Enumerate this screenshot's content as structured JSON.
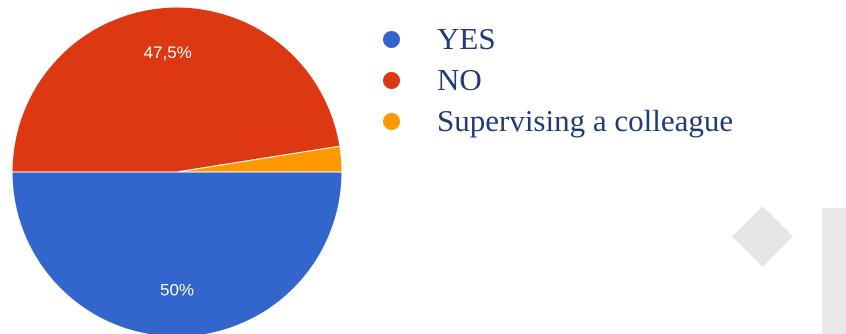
{
  "chart_data": {
    "type": "pie",
    "slices": [
      {
        "label": "YES",
        "value": 50,
        "display": "50%",
        "color": "#3366cc"
      },
      {
        "label": "NO",
        "value": 47.5,
        "display": "47,5%",
        "color": "#dc3912"
      },
      {
        "label": "Supervising a colleague",
        "value": 2.5,
        "display": "",
        "color": "#ff9900"
      }
    ]
  },
  "legend": {
    "items": [
      {
        "label": "YES",
        "color": "#3366cc"
      },
      {
        "label": "NO",
        "color": "#dc3912"
      },
      {
        "label": "Supervising a colleague",
        "color": "#ff9900"
      }
    ]
  },
  "colors": {
    "legend_text": "#1f3c78",
    "decor": "#e6e6e6"
  }
}
